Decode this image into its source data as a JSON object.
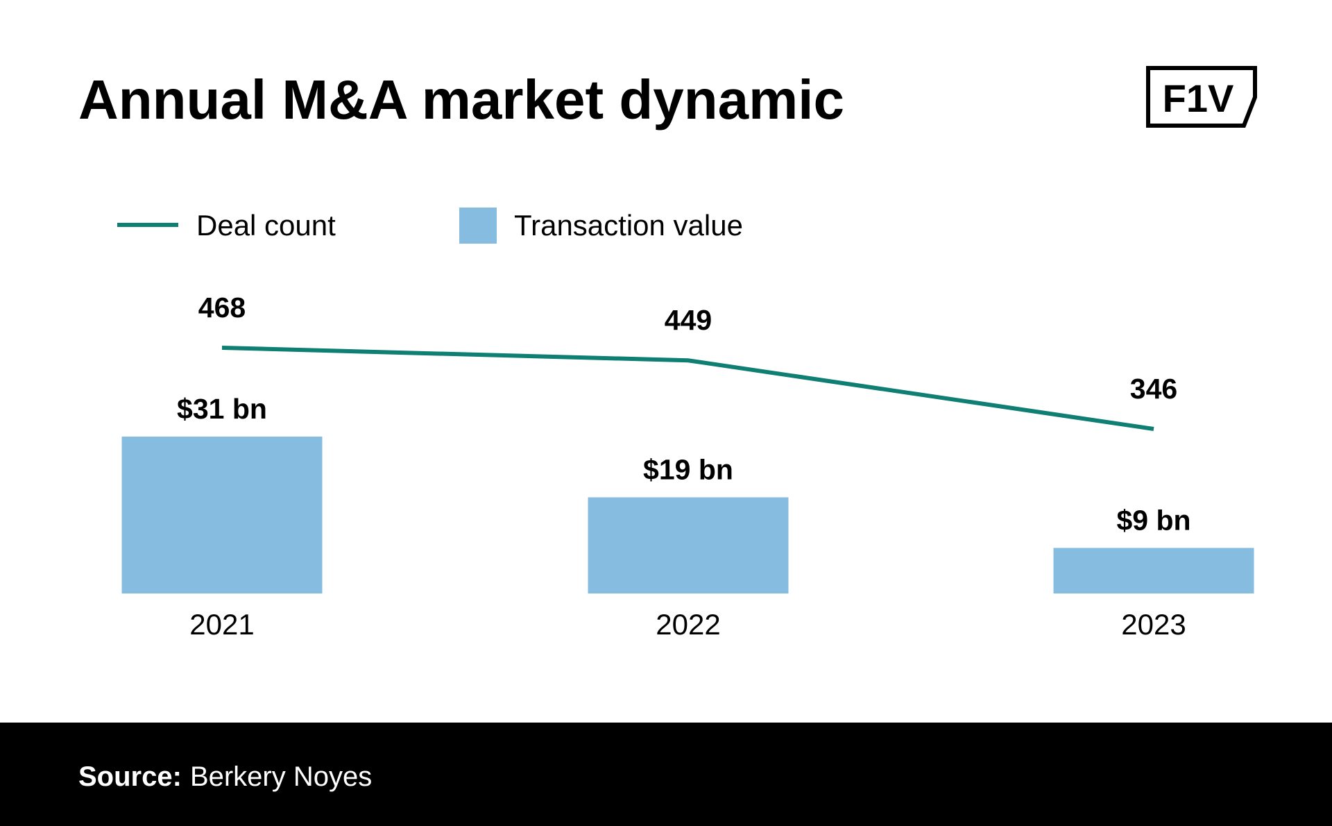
{
  "chart_data": {
    "type": "combo",
    "title": "Annual M&A market dynamic",
    "categories": [
      "2021",
      "2022",
      "2023"
    ],
    "series": [
      {
        "name": "Deal count",
        "type": "line",
        "color": "#0f7f73",
        "values": [
          468,
          449,
          346
        ]
      },
      {
        "name": "Transaction value",
        "type": "bar",
        "color": "#85bce0",
        "values": [
          31,
          19,
          9
        ],
        "value_labels": [
          "$31 bn",
          "$19 bn",
          "$9 bn"
        ]
      }
    ]
  },
  "logo": "F1V",
  "footer": {
    "label": "Source:",
    "text": "Berkery Noyes"
  }
}
